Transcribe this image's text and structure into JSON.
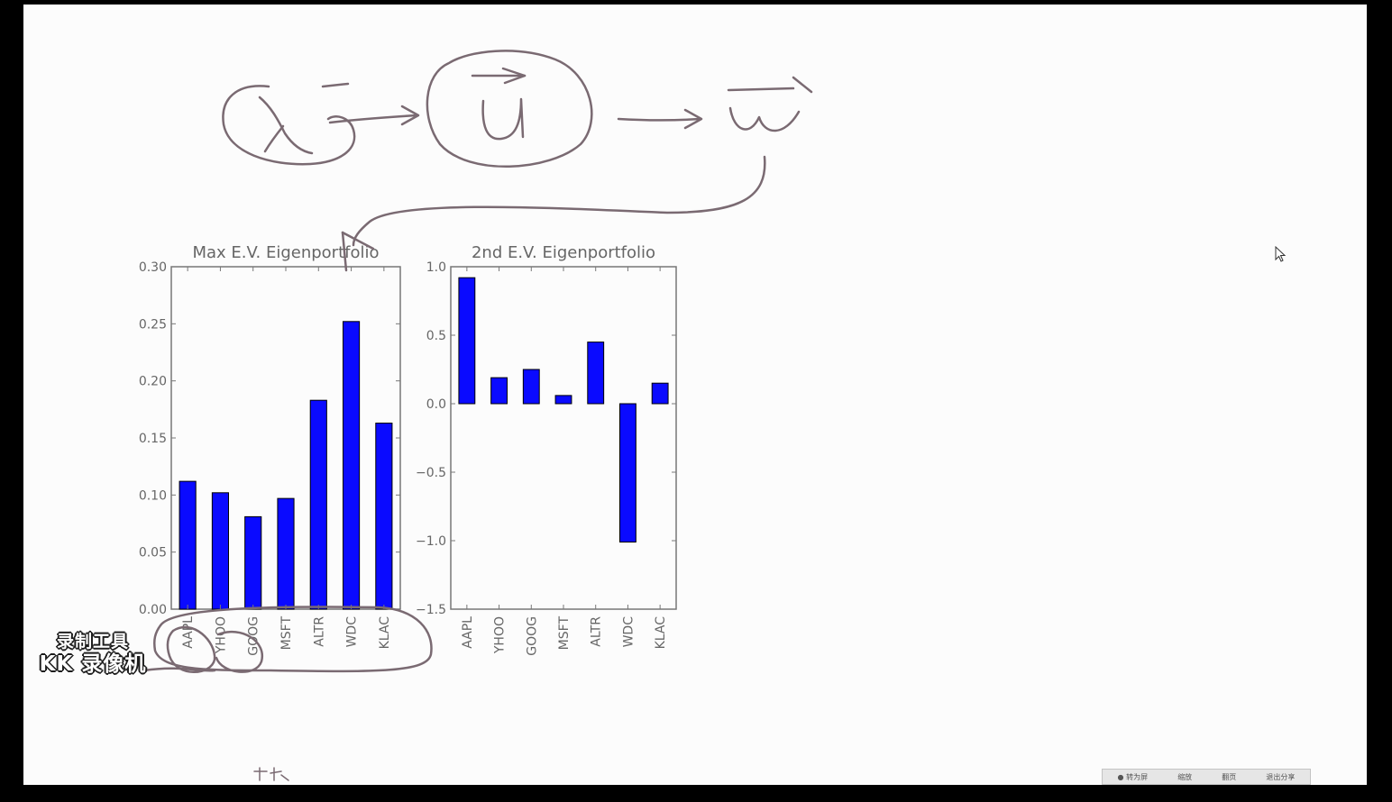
{
  "watermark": {
    "line1": "录制工具",
    "line2": "KK 录像机"
  },
  "toolbar": {
    "items": [
      "● 转为屏",
      "缩放",
      "翻页",
      "退出分享"
    ]
  },
  "colors": {
    "bar_fill": "#0a0aff",
    "bar_edge": "#000000",
    "ink": "#7a6a72",
    "axes": "#777777"
  },
  "chart_data": [
    {
      "type": "bar",
      "title": "Max E.V. Eigenportfolio",
      "categories": [
        "AAPL",
        "YHOO",
        "GOOG",
        "MSFT",
        "ALTR",
        "WDC",
        "KLAC"
      ],
      "values": [
        0.112,
        0.102,
        0.081,
        0.097,
        0.183,
        0.252,
        0.163
      ],
      "ylim": [
        0.0,
        0.3
      ],
      "yticks": [
        "0.00",
        "0.05",
        "0.10",
        "0.15",
        "0.20",
        "0.25",
        "0.30"
      ],
      "xlabel": "",
      "ylabel": "",
      "grid": false
    },
    {
      "type": "bar",
      "title": "2nd E.V. Eigenportfolio",
      "categories": [
        "AAPL",
        "YHOO",
        "GOOG",
        "MSFT",
        "ALTR",
        "WDC",
        "KLAC"
      ],
      "values": [
        0.92,
        0.19,
        0.25,
        0.06,
        0.45,
        -1.01,
        0.15
      ],
      "ylim": [
        -1.5,
        1.0
      ],
      "yticks": [
        "−1.5",
        "−1.0",
        "−0.5",
        "0.0",
        "0.5",
        "1.0"
      ],
      "xlabel": "",
      "ylabel": "",
      "grid": false
    }
  ]
}
